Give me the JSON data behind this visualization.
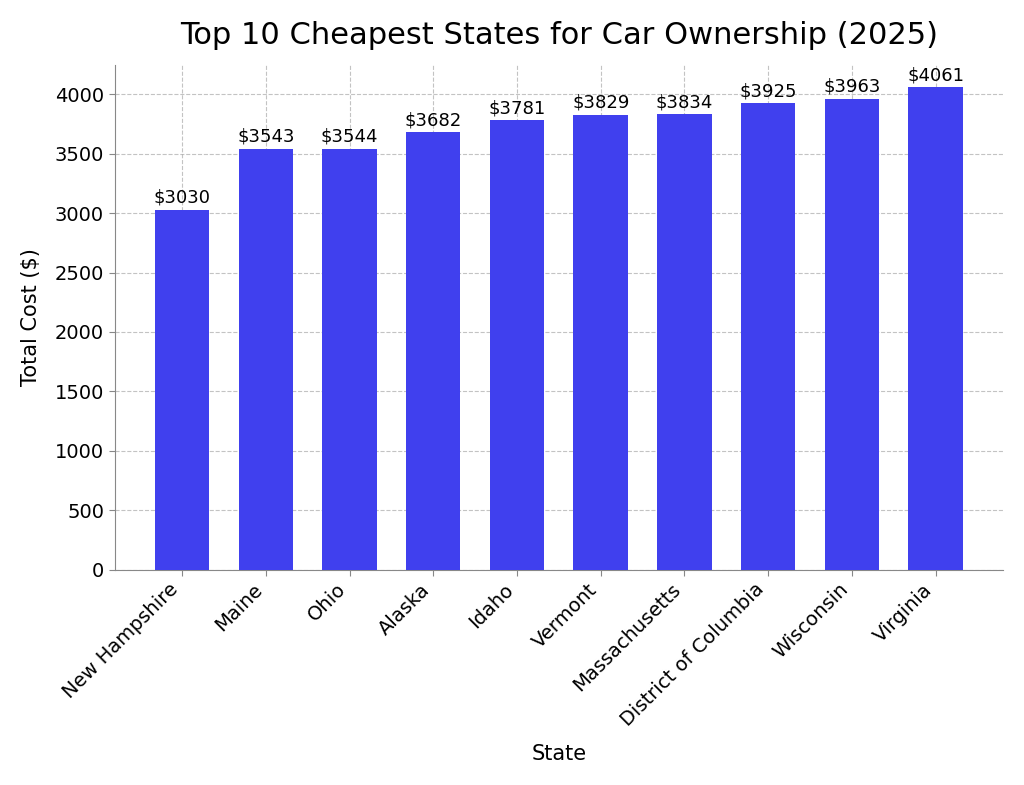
{
  "title": "Top 10 Cheapest States for Car Ownership (2025)",
  "xlabel": "State",
  "ylabel": "Total Cost ($)",
  "categories": [
    "New Hampshire",
    "Maine",
    "Ohio",
    "Alaska",
    "Idaho",
    "Vermont",
    "Massachusetts",
    "District of Columbia",
    "Wisconsin",
    "Virginia"
  ],
  "values": [
    3030,
    3543,
    3544,
    3682,
    3781,
    3829,
    3834,
    3925,
    3963,
    4061
  ],
  "bar_color": "#4040ee",
  "bar_edge_color": "none",
  "ylim": [
    0,
    4250
  ],
  "yticks": [
    0,
    500,
    1000,
    1500,
    2000,
    2500,
    3000,
    3500,
    4000
  ],
  "grid_color": "#aaaaaa",
  "grid_style": "--",
  "grid_alpha": 0.7,
  "background_color": "#ffffff",
  "title_fontsize": 22,
  "title_fontweight": "normal",
  "label_fontsize": 15,
  "tick_fontsize": 14,
  "annotation_fontsize": 13,
  "bar_width": 0.65
}
